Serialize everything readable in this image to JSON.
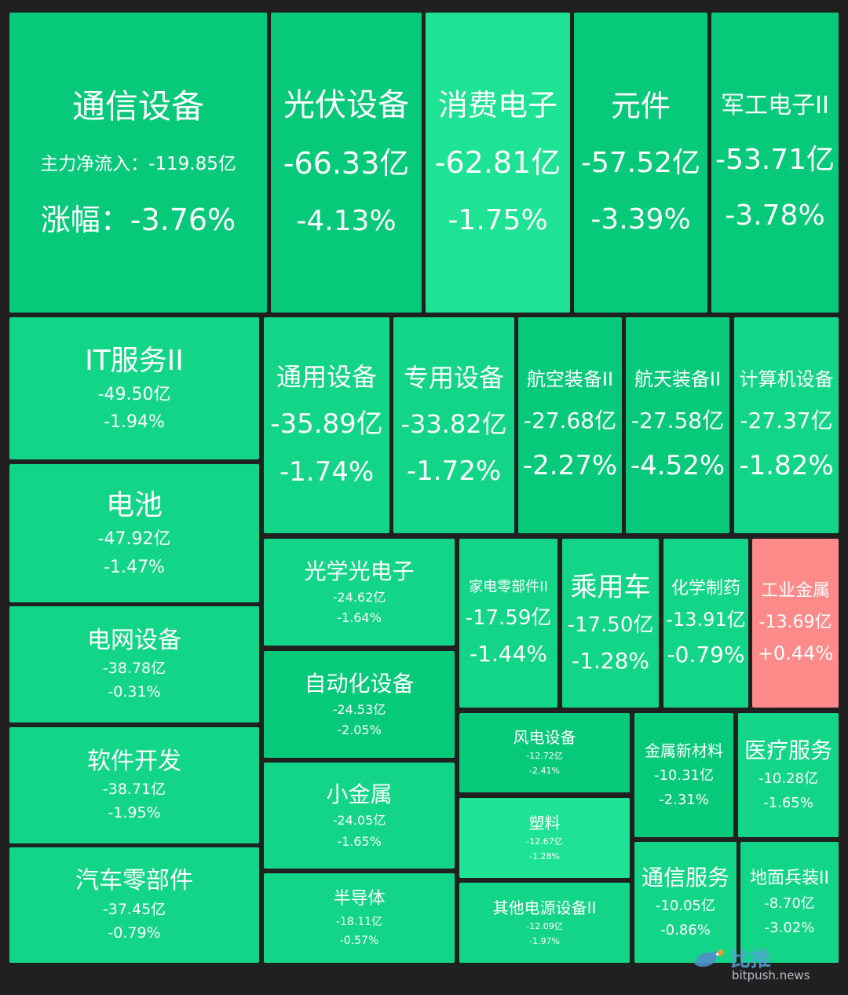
{
  "chart_data": {
    "type": "treemap",
    "value_label_prefix": "主力净流入：",
    "change_label_prefix": "涨幅：",
    "colors": {
      "green_dark": "#07c97a",
      "green_mid": "#12d587",
      "green_light": "#1ee294",
      "red": "#ff8a8a",
      "background": "#202020"
    },
    "items": [
      {
        "name": "通信设备",
        "net_inflow": "-119.85亿",
        "change": "-3.76%",
        "net_inflow_value": -119.85,
        "change_value": -3.76
      },
      {
        "name": "光伏设备",
        "net_inflow": "-66.33亿",
        "change": "-4.13%",
        "net_inflow_value": -66.33,
        "change_value": -4.13
      },
      {
        "name": "消费电子",
        "net_inflow": "-62.81亿",
        "change": "-1.75%",
        "net_inflow_value": -62.81,
        "change_value": -1.75
      },
      {
        "name": "元件",
        "net_inflow": "-57.52亿",
        "change": "-3.39%",
        "net_inflow_value": -57.52,
        "change_value": -3.39
      },
      {
        "name": "军工电子II",
        "net_inflow": "-53.71亿",
        "change": "-3.78%",
        "net_inflow_value": -53.71,
        "change_value": -3.78
      },
      {
        "name": "IT服务II",
        "net_inflow": "-49.50亿",
        "change": "-1.94%",
        "net_inflow_value": -49.5,
        "change_value": -1.94
      },
      {
        "name": "电池",
        "net_inflow": "-47.92亿",
        "change": "-1.47%",
        "net_inflow_value": -47.92,
        "change_value": -1.47
      },
      {
        "name": "电网设备",
        "net_inflow": "-38.78亿",
        "change": "-0.31%",
        "net_inflow_value": -38.78,
        "change_value": -0.31
      },
      {
        "name": "软件开发",
        "net_inflow": "-38.71亿",
        "change": "-1.95%",
        "net_inflow_value": -38.71,
        "change_value": -1.95
      },
      {
        "name": "汽车零部件",
        "net_inflow": "-37.45亿",
        "change": "-0.79%",
        "net_inflow_value": -37.45,
        "change_value": -0.79
      },
      {
        "name": "通用设备",
        "net_inflow": "-35.89亿",
        "change": "-1.74%",
        "net_inflow_value": -35.89,
        "change_value": -1.74
      },
      {
        "name": "专用设备",
        "net_inflow": "-33.82亿",
        "change": "-1.72%",
        "net_inflow_value": -33.82,
        "change_value": -1.72
      },
      {
        "name": "航空装备II",
        "net_inflow": "-27.68亿",
        "change": "-2.27%",
        "net_inflow_value": -27.68,
        "change_value": -2.27
      },
      {
        "name": "航天装备II",
        "net_inflow": "-27.58亿",
        "change": "-4.52%",
        "net_inflow_value": -27.58,
        "change_value": -4.52
      },
      {
        "name": "计算机设备",
        "net_inflow": "-27.37亿",
        "change": "-1.82%",
        "net_inflow_value": -27.37,
        "change_value": -1.82
      },
      {
        "name": "光学光电子",
        "net_inflow": "-24.62亿",
        "change": "-1.64%",
        "net_inflow_value": -24.62,
        "change_value": -1.64
      },
      {
        "name": "自动化设备",
        "net_inflow": "-24.53亿",
        "change": "-2.05%",
        "net_inflow_value": -24.53,
        "change_value": -2.05
      },
      {
        "name": "小金属",
        "net_inflow": "-24.05亿",
        "change": "-1.65%",
        "net_inflow_value": -24.05,
        "change_value": -1.65
      },
      {
        "name": "半导体",
        "net_inflow": "-18.11亿",
        "change": "-0.57%",
        "net_inflow_value": -18.11,
        "change_value": -0.57
      },
      {
        "name": "家电零部件II",
        "net_inflow": "-17.59亿",
        "change": "-1.44%",
        "net_inflow_value": -17.59,
        "change_value": -1.44
      },
      {
        "name": "乘用车",
        "net_inflow": "-17.50亿",
        "change": "-1.28%",
        "net_inflow_value": -17.5,
        "change_value": -1.28
      },
      {
        "name": "化学制药",
        "net_inflow": "-13.91亿",
        "change": "-0.79%",
        "net_inflow_value": -13.91,
        "change_value": -0.79
      },
      {
        "name": "工业金属",
        "net_inflow": "-13.69亿",
        "change": "+0.44%",
        "net_inflow_value": -13.69,
        "change_value": 0.44
      },
      {
        "name": "风电设备",
        "net_inflow": "-12.72亿",
        "change": "-2.41%",
        "net_inflow_value": -12.72,
        "change_value": -2.41
      },
      {
        "name": "塑料",
        "net_inflow": "-12.67亿",
        "change": "-1.28%",
        "net_inflow_value": -12.67,
        "change_value": -1.28
      },
      {
        "name": "其他电源设备II",
        "net_inflow": "-12.09亿",
        "change": "-1.97%",
        "net_inflow_value": -12.09,
        "change_value": -1.97
      },
      {
        "name": "金属新材料",
        "net_inflow": "-10.31亿",
        "change": "-2.31%",
        "net_inflow_value": -10.31,
        "change_value": -2.31
      },
      {
        "name": "医疗服务",
        "net_inflow": "-10.28亿",
        "change": "-1.65%",
        "net_inflow_value": -10.28,
        "change_value": -1.65
      },
      {
        "name": "通信服务",
        "net_inflow": "-10.05亿",
        "change": "-0.86%",
        "net_inflow_value": -10.05,
        "change_value": -0.86
      },
      {
        "name": "地面兵装II",
        "net_inflow": "-8.70亿",
        "change": "-3.02%",
        "net_inflow_value": -8.7,
        "change_value": -3.02
      }
    ]
  },
  "watermark": {
    "brand": "比推",
    "site": "bitpush.news",
    "icon": "bird-logo-icon"
  }
}
